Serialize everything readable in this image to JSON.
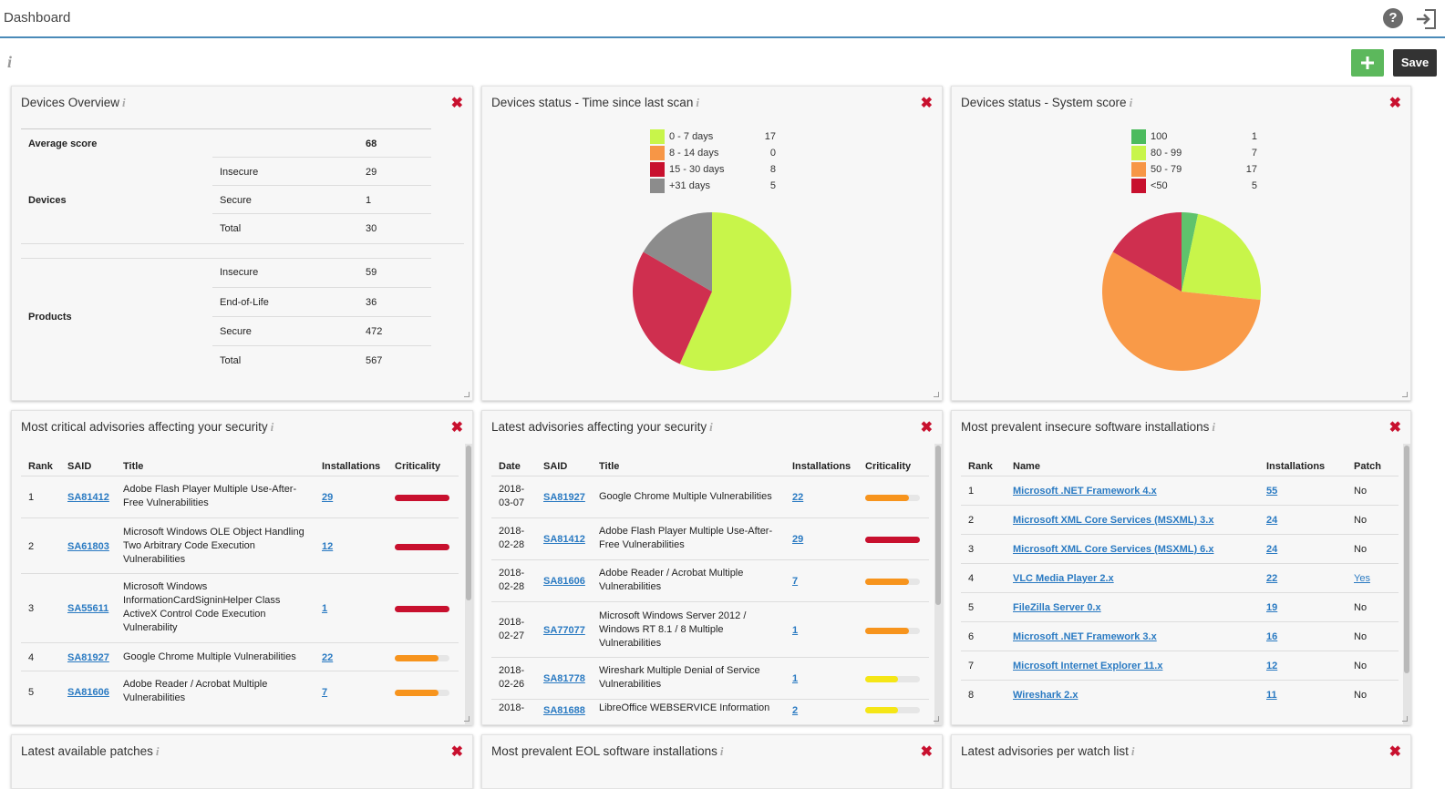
{
  "header": {
    "title": "Dashboard",
    "help_label": "?",
    "save_label": "Save"
  },
  "widgets": {
    "overview": {
      "title": "Devices Overview",
      "average_score_label": "Average score",
      "average_score": "68",
      "devices_label": "Devices",
      "devices": [
        {
          "label": "Insecure",
          "value": "29"
        },
        {
          "label": "Secure",
          "value": "1"
        },
        {
          "label": "Total",
          "value": "30"
        }
      ],
      "products_label": "Products",
      "products": [
        {
          "label": "Insecure",
          "value": "59"
        },
        {
          "label": "End-of-Life",
          "value": "36"
        },
        {
          "label": "Secure",
          "value": "472"
        },
        {
          "label": "Total",
          "value": "567"
        }
      ]
    },
    "scan": {
      "title": "Devices status - Time since last scan",
      "legend": [
        {
          "label": "0 - 7 days",
          "value": "17",
          "color": "#c8f54a"
        },
        {
          "label": "8 - 14 days",
          "value": "0",
          "color": "#f79646"
        },
        {
          "label": "15 - 30 days",
          "value": "8",
          "color": "#c8102e"
        },
        {
          "label": "+31 days",
          "value": "5",
          "color": "#8c8c8c"
        }
      ]
    },
    "score": {
      "title": "Devices status - System score",
      "legend": [
        {
          "label": "100",
          "value": "1",
          "color": "#4cbb5e"
        },
        {
          "label": "80 - 99",
          "value": "7",
          "color": "#c8f54a"
        },
        {
          "label": "50 - 79",
          "value": "17",
          "color": "#f79646"
        },
        {
          "label": "<50",
          "value": "5",
          "color": "#c8102e"
        }
      ]
    },
    "critical": {
      "title": "Most critical advisories affecting your security",
      "headers": [
        "Rank",
        "SAID",
        "Title",
        "Installations",
        "Criticality"
      ],
      "rows": [
        {
          "rank": "1",
          "said": "SA81412",
          "title": [
            "Adobe Flash Player Multiple Use-After-",
            "Free Vulnerabilities"
          ],
          "inst": "29",
          "crit": 1.0,
          "color": "#c8102e"
        },
        {
          "rank": "2",
          "said": "SA61803",
          "title": [
            "Microsoft Windows OLE Object Handling",
            "Two Arbitrary Code Execution",
            "Vulnerabilities"
          ],
          "inst": "12",
          "crit": 1.0,
          "color": "#c8102e"
        },
        {
          "rank": "3",
          "said": "SA55611",
          "title": [
            "Microsoft Windows",
            "InformationCardSigninHelper Class",
            "ActiveX Control Code Execution",
            "Vulnerability"
          ],
          "inst": "1",
          "crit": 1.0,
          "color": "#c8102e"
        },
        {
          "rank": "4",
          "said": "SA81927",
          "title": [
            "Google Chrome Multiple Vulnerabilities"
          ],
          "inst": "22",
          "crit": 0.8,
          "color": "#f7941d"
        },
        {
          "rank": "5",
          "said": "SA81606",
          "title": [
            "Adobe Reader / Acrobat Multiple",
            "Vulnerabilities"
          ],
          "inst": "7",
          "crit": 0.8,
          "color": "#f7941d"
        }
      ]
    },
    "latest": {
      "title": "Latest advisories affecting your security",
      "headers": [
        "Date",
        "SAID",
        "Title",
        "Installations",
        "Criticality"
      ],
      "rows": [
        {
          "date": [
            "2018-",
            "03-07"
          ],
          "said": "SA81927",
          "title": [
            "Google Chrome Multiple Vulnerabilities"
          ],
          "inst": "22",
          "crit": 0.8,
          "color": "#f7941d"
        },
        {
          "date": [
            "2018-",
            "02-28"
          ],
          "said": "SA81412",
          "title": [
            "Adobe Flash Player Multiple Use-After-",
            "Free Vulnerabilities"
          ],
          "inst": "29",
          "crit": 1.0,
          "color": "#c8102e"
        },
        {
          "date": [
            "2018-",
            "02-28"
          ],
          "said": "SA81606",
          "title": [
            "Adobe Reader / Acrobat Multiple",
            "Vulnerabilities"
          ],
          "inst": "7",
          "crit": 0.8,
          "color": "#f7941d"
        },
        {
          "date": [
            "2018-",
            "02-27"
          ],
          "said": "SA77077",
          "title": [
            "Microsoft Windows Server 2012 /",
            "Windows RT 8.1 / 8 Multiple",
            "Vulnerabilities"
          ],
          "inst": "1",
          "crit": 0.8,
          "color": "#f7941d"
        },
        {
          "date": [
            "2018-",
            "02-26"
          ],
          "said": "SA81778",
          "title": [
            "Wireshark Multiple Denial of Service",
            "Vulnerabilities"
          ],
          "inst": "1",
          "crit": 0.6,
          "color": "#f5e616"
        },
        {
          "date": [
            "2018-"
          ],
          "said": "SA81688",
          "title": [
            "LibreOffice WEBSERVICE Information"
          ],
          "inst": "2",
          "crit": 0.6,
          "color": "#f5e616"
        }
      ]
    },
    "prevalent": {
      "title": "Most prevalent insecure software installations",
      "headers": [
        "Rank",
        "Name",
        "Installations",
        "Patch"
      ],
      "rows": [
        {
          "rank": "1",
          "name": "Microsoft .NET Framework 4.x",
          "inst": "55",
          "patch": "No"
        },
        {
          "rank": "2",
          "name": "Microsoft XML Core Services (MSXML) 3.x",
          "inst": "24",
          "patch": "No"
        },
        {
          "rank": "3",
          "name": "Microsoft XML Core Services (MSXML) 6.x",
          "inst": "24",
          "patch": "No"
        },
        {
          "rank": "4",
          "name": "VLC Media Player 2.x",
          "inst": "22",
          "patch": "Yes"
        },
        {
          "rank": "5",
          "name": "FileZilla Server 0.x",
          "inst": "19",
          "patch": "No"
        },
        {
          "rank": "6",
          "name": "Microsoft .NET Framework 3.x",
          "inst": "16",
          "patch": "No"
        },
        {
          "rank": "7",
          "name": "Microsoft Internet Explorer 11.x",
          "inst": "12",
          "patch": "No"
        },
        {
          "rank": "8",
          "name": "Wireshark 2.x",
          "inst": "11",
          "patch": "No"
        }
      ]
    },
    "patches": {
      "title": "Latest available patches"
    },
    "eol": {
      "title": "Most prevalent EOL software installations"
    },
    "watchlist": {
      "title": "Latest advisories per watch list"
    }
  },
  "chart_data": [
    {
      "type": "pie",
      "title": "Devices status - Time since last scan",
      "categories": [
        "0 - 7 days",
        "8 - 14 days",
        "15 - 30 days",
        "+31 days"
      ],
      "values": [
        17,
        0,
        8,
        5
      ],
      "colors": [
        "#c8f54a",
        "#f79646",
        "#cf2f4f",
        "#8c8c8c"
      ]
    },
    {
      "type": "pie",
      "title": "Devices status - System score",
      "categories": [
        "100",
        "80 - 99",
        "50 - 79",
        "<50"
      ],
      "values": [
        1,
        7,
        17,
        5
      ],
      "colors": [
        "#5fc36c",
        "#c8f54a",
        "#f99a48",
        "#cf2f4f"
      ]
    }
  ]
}
